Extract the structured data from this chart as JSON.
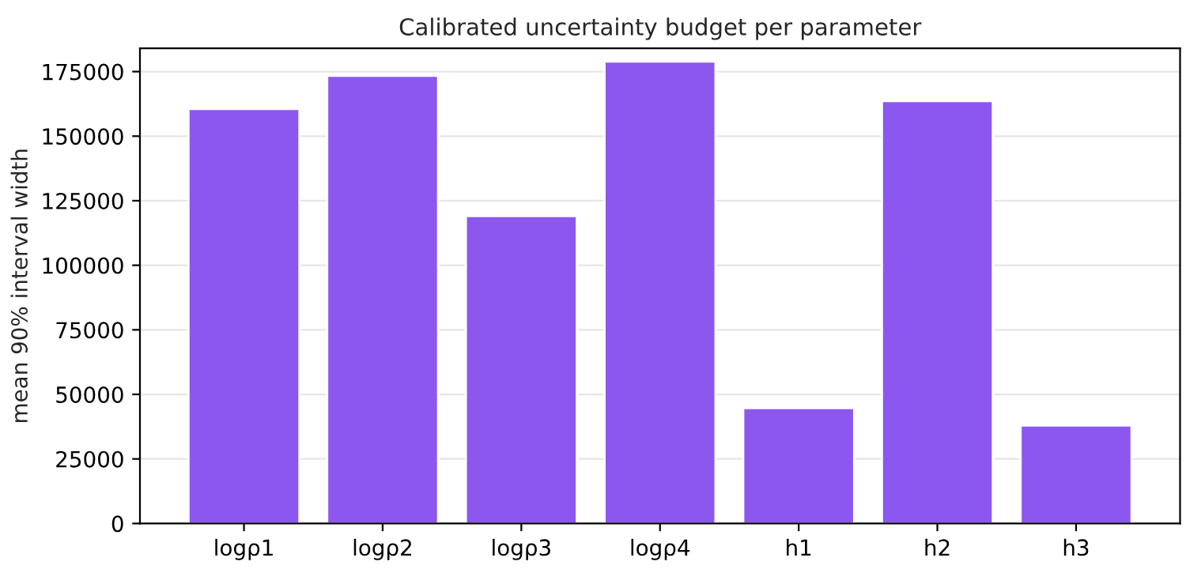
{
  "chart_data": {
    "type": "bar",
    "title": "Calibrated uncertainty budget per parameter",
    "ylabel": "mean 90% interval width",
    "categories": [
      "logρ1",
      "logρ2",
      "logρ3",
      "logρ4",
      "h1",
      "h2",
      "h3"
    ],
    "values": [
      160500,
      173400,
      119100,
      178900,
      44700,
      163600,
      38000
    ],
    "color": "#8c57ef",
    "ylim": [
      0,
      184000
    ],
    "yticks": [
      0,
      25000,
      50000,
      75000,
      100000,
      125000,
      150000,
      175000
    ],
    "grid": "y"
  }
}
